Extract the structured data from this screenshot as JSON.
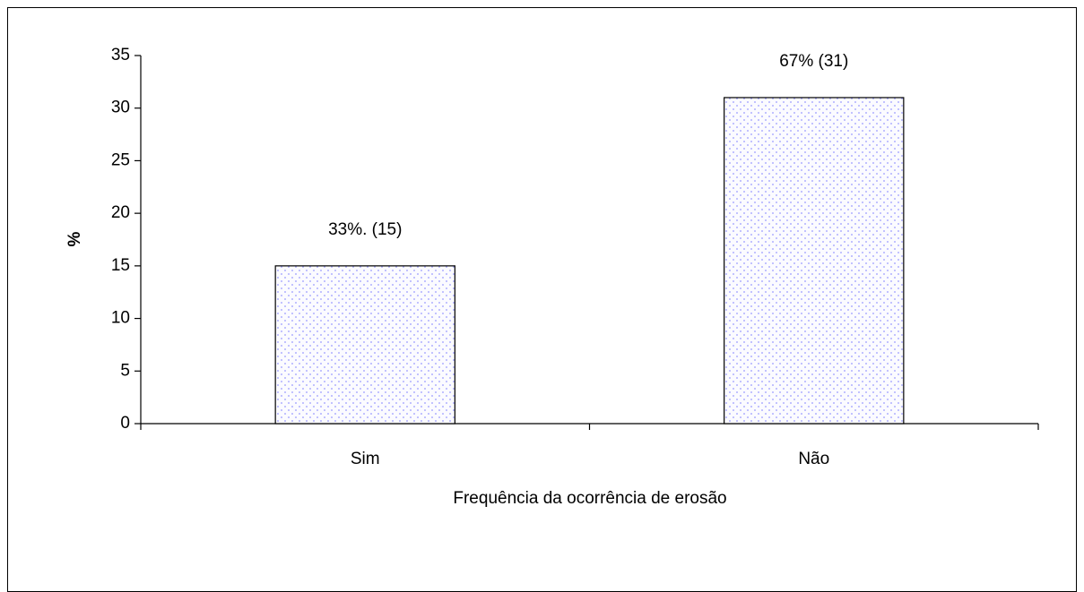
{
  "chart_data": {
    "type": "bar",
    "categories": [
      "Sim",
      "Não"
    ],
    "values": [
      15,
      31
    ],
    "value_labels": [
      "33%. (15)",
      "67% (31)"
    ],
    "color": "#9999ff",
    "ylabel": "%",
    "xlabel": "Frequência da ocorrência de erosão",
    "ylim": [
      0,
      35
    ],
    "yticks": [
      0,
      5,
      10,
      15,
      20,
      25,
      30,
      35
    ],
    "grid": false
  }
}
